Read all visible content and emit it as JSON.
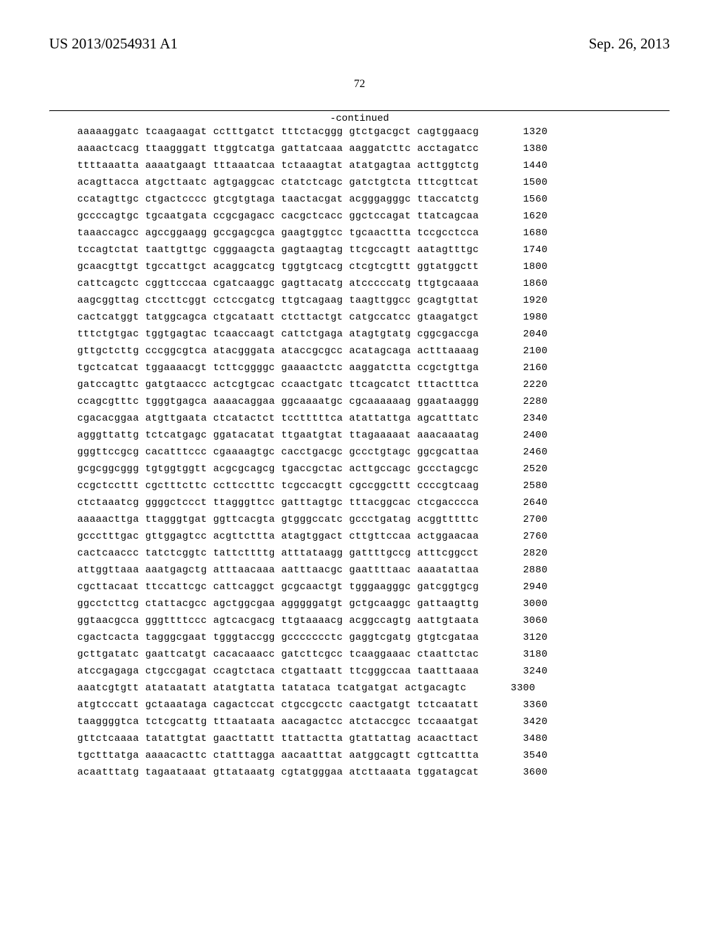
{
  "header": {
    "publication_number": "US 2013/0254931 A1",
    "publication_date": "Sep. 26, 2013"
  },
  "page_number": "72",
  "continued_label": "-continued",
  "sequence": {
    "rows": [
      {
        "seq": "aaaaaggatc tcaagaagat cctttgatct tttctacggg gtctgacgct cagtggaacg",
        "pos": "1320"
      },
      {
        "seq": "aaaactcacg ttaagggatt ttggtcatga gattatcaaa aaggatcttc acctagatcc",
        "pos": "1380"
      },
      {
        "seq": "ttttaaatta aaaatgaagt tttaaatcaa tctaaagtat atatgagtaa acttggtctg",
        "pos": "1440"
      },
      {
        "seq": "acagttacca atgcttaatc agtgaggcac ctatctcagc gatctgtcta tttcgttcat",
        "pos": "1500"
      },
      {
        "seq": "ccatagttgc ctgactcccc gtcgtgtaga taactacgat acgggagggc ttaccatctg",
        "pos": "1560"
      },
      {
        "seq": "gccccagtgc tgcaatgata ccgcgagacc cacgctcacc ggctccagat ttatcagcaa",
        "pos": "1620"
      },
      {
        "seq": "taaaccagcc agccggaagg gccgagcgca gaagtggtcc tgcaacttta tccgcctcca",
        "pos": "1680"
      },
      {
        "seq": "tccagtctat taattgttgc cgggaagcta gagtaagtag ttcgccagtt aatagtttgc",
        "pos": "1740"
      },
      {
        "seq": "gcaacgttgt tgccattgct acaggcatcg tggtgtcacg ctcgtcgttt ggtatggctt",
        "pos": "1800"
      },
      {
        "seq": "cattcagctc cggttcccaa cgatcaaggc gagttacatg atcccccatg ttgtgcaaaa",
        "pos": "1860"
      },
      {
        "seq": "aagcggttag ctccttcggt cctccgatcg ttgtcagaag taagttggcc gcagtgttat",
        "pos": "1920"
      },
      {
        "seq": "cactcatggt tatggcagca ctgcataatt ctcttactgt catgccatcc gtaagatgct",
        "pos": "1980"
      },
      {
        "seq": "tttctgtgac tggtgagtac tcaaccaagt cattctgaga atagtgtatg cggcgaccga",
        "pos": "2040"
      },
      {
        "seq": "gttgctcttg cccggcgtca atacgggata ataccgcgcc acatagcaga actttaaaag",
        "pos": "2100"
      },
      {
        "seq": "tgctcatcat tggaaaacgt tcttcggggc gaaaactctc aaggatctta ccgctgttga",
        "pos": "2160"
      },
      {
        "seq": "gatccagttc gatgtaaccc actcgtgcac ccaactgatc ttcagcatct tttactttca",
        "pos": "2220"
      },
      {
        "seq": "ccagcgtttc tgggtgagca aaaacaggaa ggcaaaatgc cgcaaaaaag ggaataaggg",
        "pos": "2280"
      },
      {
        "seq": "cgacacggaa atgttgaata ctcatactct tcctttttca atattattga agcatttatc",
        "pos": "2340"
      },
      {
        "seq": "agggttattg tctcatgagc ggatacatat ttgaatgtat ttagaaaaat aaacaaatag",
        "pos": "2400"
      },
      {
        "seq": "gggttccgcg cacatttccc cgaaaagtgc cacctgacgc gccctgtagc ggcgcattaa",
        "pos": "2460"
      },
      {
        "seq": "gcgcggcggg tgtggtggtt acgcgcagcg tgaccgctac acttgccagc gccctagcgc",
        "pos": "2520"
      },
      {
        "seq": "ccgctccttt cgctttcttc ccttcctttc tcgccacgtt cgccggcttt ccccgtcaag",
        "pos": "2580"
      },
      {
        "seq": "ctctaaatcg ggggctccct ttagggttcc gatttagtgc tttacggcac ctcgacccca",
        "pos": "2640"
      },
      {
        "seq": "aaaaacttga ttagggtgat ggttcacgta gtgggccatc gccctgatag acggtttttc",
        "pos": "2700"
      },
      {
        "seq": "gccctttgac gttggagtcc acgttcttta atagtggact cttgttccaa actggaacaa",
        "pos": "2760"
      },
      {
        "seq": "cactcaaccc tatctcggtc tattcttttg atttataagg gattttgccg atttcggcct",
        "pos": "2820"
      },
      {
        "seq": "attggttaaa aaatgagctg atttaacaaa aatttaacgc gaattttaac aaaatattaa",
        "pos": "2880"
      },
      {
        "seq": "cgcttacaat ttccattcgc cattcaggct gcgcaactgt tgggaagggc gatcggtgcg",
        "pos": "2940"
      },
      {
        "seq": "ggcctcttcg ctattacgcc agctggcgaa agggggatgt gctgcaaggc gattaagttg",
        "pos": "3000"
      },
      {
        "seq": "ggtaacgcca gggttttccc agtcacgacg ttgtaaaacg acggccagtg aattgtaata",
        "pos": "3060"
      },
      {
        "seq": "cgactcacta tagggcgaat tgggtaccgg gccccccctc gaggtcgatg gtgtcgataa",
        "pos": "3120"
      },
      {
        "seq": "gcttgatatc gaattcatgt cacacaaacc gatcttcgcc tcaaggaaac ctaattctac",
        "pos": "3180"
      },
      {
        "seq": "atccgagaga ctgccgagat ccagtctaca ctgattaatt ttcgggccaa taatttaaaa",
        "pos": "3240"
      },
      {
        "seq": "aaatcgtgtt atataatatt atatgtatta tatataca tcatgatgat actgacagtc",
        "pos": "3300"
      },
      {
        "seq": "atgtcccatt gctaaataga cagactccat ctgccgcctc caactgatgt tctcaatatt",
        "pos": "3360"
      },
      {
        "seq": "taaggggtca tctcgcattg tttaataata aacagactcc atctaccgcc tccaaatgat",
        "pos": "3420"
      },
      {
        "seq": "gttctcaaaa tatattgtat gaacttattt ttattactta gtattattag acaacttact",
        "pos": "3480"
      },
      {
        "seq": "tgctttatga aaaacacttc ctatttagga aacaatttat aatggcagtt cgttcattta",
        "pos": "3540"
      },
      {
        "seq": "acaatttatg tagaataaat gttataaatg cgtatgggaa atcttaaata tggatagcat",
        "pos": "3600"
      }
    ]
  }
}
